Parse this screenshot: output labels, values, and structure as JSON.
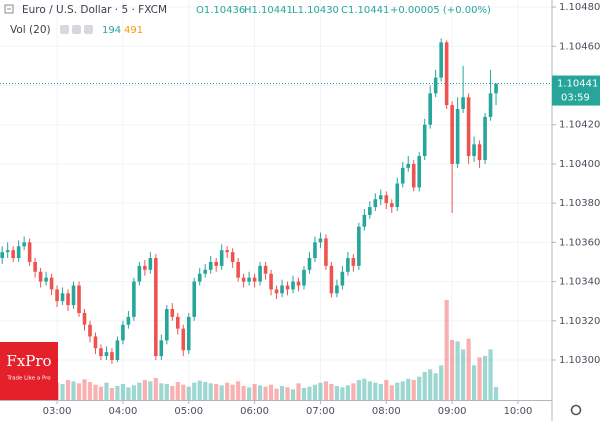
{
  "chart_data": {
    "type": "candlestick",
    "title": "Euro / U.S. Dollar · 5 · FXCM",
    "header_values": [
      "O1.10436",
      "H1.10441",
      "L1.10430",
      "C1.10441",
      "+0.00005 (+0.00%)"
    ],
    "volume_legend": {
      "name": "Vol (20)",
      "values": [
        "194",
        "491"
      ]
    },
    "last_price": {
      "value": 1.10441,
      "label": "1.10441",
      "countdown": "03:59"
    },
    "logo": {
      "name": "FxPro",
      "tagline": "Trade Like a Pro"
    },
    "up_color": "#26a69a",
    "down_color": "#ef5350",
    "grid": true,
    "x": [
      130,
      135,
      140,
      145,
      150,
      155,
      160,
      165,
      170,
      175,
      180,
      185,
      190,
      195,
      200,
      205,
      210,
      215,
      220,
      225,
      230,
      235,
      240,
      245,
      250,
      255,
      260,
      265,
      270,
      275,
      280,
      285,
      290,
      295,
      300,
      305,
      310,
      315,
      320,
      325,
      330,
      335,
      340,
      345,
      350,
      355,
      360,
      365,
      370,
      375,
      380,
      385,
      390,
      395,
      400,
      405,
      410,
      415,
      420,
      425,
      430,
      435,
      440,
      445,
      450,
      455,
      460,
      465,
      470,
      475,
      480,
      485,
      490,
      495,
      500,
      505,
      510,
      515,
      520,
      525,
      530,
      535,
      540,
      545,
      550,
      555,
      560,
      565,
      570,
      575,
      580
    ],
    "open": [
      1.10352,
      1.10355,
      1.10356,
      1.10352,
      1.10358,
      1.1036,
      1.1035,
      1.10345,
      1.1034,
      1.10342,
      1.10336,
      1.1033,
      1.10334,
      1.10328,
      1.10338,
      1.10324,
      1.10318,
      1.10312,
      1.10306,
      1.10302,
      1.10304,
      1.103,
      1.1031,
      1.10318,
      1.10322,
      1.1034,
      1.10348,
      1.10346,
      1.10352,
      1.10302,
      1.1031,
      1.10326,
      1.10322,
      1.10316,
      1.10305,
      1.10322,
      1.1034,
      1.10344,
      1.10346,
      1.1035,
      1.10348,
      1.10356,
      1.10355,
      1.1035,
      1.10342,
      1.1034,
      1.10342,
      1.1034,
      1.10348,
      1.10344,
      1.10336,
      1.10334,
      1.10338,
      1.10336,
      1.1034,
      1.10338,
      1.10346,
      1.10352,
      1.1036,
      1.10362,
      1.10348,
      1.10334,
      1.10338,
      1.10345,
      1.10352,
      1.10348,
      1.10368,
      1.10374,
      1.10378,
      1.10382,
      1.10384,
      1.1038,
      1.10378,
      1.1039,
      1.10398,
      1.104,
      1.10388,
      1.10404,
      1.1042,
      1.10436,
      1.10444,
      1.10462,
      1.1043,
      1.104,
      1.10428,
      1.10434,
      1.10404,
      1.1041,
      1.10402,
      1.10424,
      1.10436
    ],
    "high": [
      1.10358,
      1.1036,
      1.10358,
      1.10361,
      1.10363,
      1.10362,
      1.10352,
      1.10347,
      1.10345,
      1.10344,
      1.10338,
      1.10337,
      1.10336,
      1.1034,
      1.1034,
      1.10326,
      1.1032,
      1.10314,
      1.10308,
      1.10307,
      1.10306,
      1.10312,
      1.1032,
      1.10325,
      1.10342,
      1.1035,
      1.10351,
      1.10355,
      1.10354,
      1.10313,
      1.10328,
      1.10329,
      1.10324,
      1.10318,
      1.10324,
      1.10342,
      1.10347,
      1.10349,
      1.10353,
      1.10352,
      1.10359,
      1.10358,
      1.10357,
      1.10352,
      1.10344,
      1.10345,
      1.10344,
      1.1035,
      1.1035,
      1.10346,
      1.10338,
      1.10341,
      1.1034,
      1.10343,
      1.10342,
      1.10348,
      1.10355,
      1.10363,
      1.10365,
      1.10364,
      1.1035,
      1.10341,
      1.10348,
      1.10355,
      1.10354,
      1.1037,
      1.10377,
      1.10381,
      1.10385,
      1.10387,
      1.10386,
      1.10382,
      1.10393,
      1.10401,
      1.10404,
      1.10402,
      1.10406,
      1.10423,
      1.1044,
      1.10448,
      1.10464,
      1.10463,
      1.10432,
      1.10434,
      1.1045,
      1.10436,
      1.10414,
      1.10412,
      1.10426,
      1.10448,
      1.10441
    ],
    "low": [
      1.10349,
      1.10352,
      1.1035,
      1.1035,
      1.10356,
      1.10348,
      1.10342,
      1.10337,
      1.10338,
      1.10333,
      1.10327,
      1.10328,
      1.10325,
      1.10326,
      1.10322,
      1.10315,
      1.10309,
      1.10303,
      1.103,
      1.103,
      1.10298,
      1.10299,
      1.10308,
      1.10316,
      1.1032,
      1.10338,
      1.10343,
      1.10344,
      1.103,
      1.103,
      1.10308,
      1.1032,
      1.10313,
      1.10302,
      1.10303,
      1.1032,
      1.10338,
      1.10342,
      1.10344,
      1.10345,
      1.10346,
      1.10352,
      1.10347,
      1.1034,
      1.10337,
      1.10338,
      1.10337,
      1.10338,
      1.10341,
      1.10333,
      1.10331,
      1.10332,
      1.10333,
      1.10334,
      1.10335,
      1.10336,
      1.10344,
      1.1035,
      1.10357,
      1.10346,
      1.10332,
      1.10332,
      1.10336,
      1.10343,
      1.10345,
      1.10346,
      1.10366,
      1.10372,
      1.10376,
      1.10379,
      1.10377,
      1.10375,
      1.10376,
      1.10388,
      1.10396,
      1.10386,
      1.10386,
      1.10402,
      1.10418,
      1.10434,
      1.10442,
      1.10428,
      1.10375,
      1.10398,
      1.10426,
      1.104,
      1.10401,
      1.10398,
      1.104,
      1.10422,
      1.1043
    ],
    "close": [
      1.10355,
      1.10356,
      1.10352,
      1.10358,
      1.1036,
      1.1035,
      1.10345,
      1.1034,
      1.10342,
      1.10336,
      1.1033,
      1.10334,
      1.10328,
      1.10338,
      1.10324,
      1.10318,
      1.10312,
      1.10306,
      1.10302,
      1.10304,
      1.103,
      1.1031,
      1.10318,
      1.10322,
      1.1034,
      1.10348,
      1.10346,
      1.10352,
      1.10302,
      1.1031,
      1.10326,
      1.10322,
      1.10316,
      1.10305,
      1.10322,
      1.1034,
      1.10344,
      1.10346,
      1.1035,
      1.10348,
      1.10356,
      1.10355,
      1.1035,
      1.10342,
      1.1034,
      1.10342,
      1.1034,
      1.10348,
      1.10344,
      1.10336,
      1.10334,
      1.10338,
      1.10336,
      1.1034,
      1.10338,
      1.10346,
      1.10352,
      1.1036,
      1.10362,
      1.10348,
      1.10334,
      1.10338,
      1.10345,
      1.10352,
      1.10348,
      1.10368,
      1.10374,
      1.10378,
      1.10382,
      1.10384,
      1.1038,
      1.10378,
      1.1039,
      1.10398,
      1.104,
      1.10388,
      1.10404,
      1.1042,
      1.10436,
      1.10444,
      1.10462,
      1.1043,
      1.104,
      1.10428,
      1.10434,
      1.10404,
      1.1041,
      1.10402,
      1.10424,
      1.10436,
      1.10441
    ],
    "volume": [
      150,
      120,
      140,
      110,
      160,
      200,
      180,
      170,
      220,
      190,
      260,
      240,
      300,
      280,
      250,
      310,
      270,
      230,
      200,
      260,
      180,
      210,
      240,
      190,
      220,
      260,
      300,
      280,
      330,
      250,
      240,
      210,
      270,
      230,
      200,
      260,
      290,
      270,
      250,
      240,
      220,
      260,
      230,
      280,
      210,
      190,
      240,
      220,
      200,
      230,
      170,
      210,
      190,
      160,
      250,
      180,
      200,
      230,
      260,
      280,
      240,
      210,
      190,
      220,
      250,
      300,
      320,
      280,
      260,
      240,
      300,
      220,
      260,
      280,
      320,
      300,
      350,
      420,
      460,
      400,
      520,
      1500,
      900,
      880,
      760,
      920,
      520,
      640,
      660,
      760,
      194
    ],
    "vlim": [
      0,
      6000
    ],
    "xlim": [
      128,
      631
    ],
    "xticks": [
      {
        "value": 180,
        "label": "03:00"
      },
      {
        "value": 240,
        "label": "04:00"
      },
      {
        "value": 300,
        "label": "05:00"
      },
      {
        "value": 360,
        "label": "06:00"
      },
      {
        "value": 420,
        "label": "07:00"
      },
      {
        "value": 480,
        "label": "08:00"
      },
      {
        "value": 540,
        "label": "09:00"
      },
      {
        "value": 600,
        "label": "10:00"
      }
    ],
    "ylim": [
      1.102796,
      1.104836
    ],
    "yticks": [
      {
        "value": 1.103,
        "label": "1.10300"
      },
      {
        "value": 1.1032,
        "label": "1.10320"
      },
      {
        "value": 1.1034,
        "label": "1.10340"
      },
      {
        "value": 1.1036,
        "label": "1.10360"
      },
      {
        "value": 1.1038,
        "label": "1.10380"
      },
      {
        "value": 1.104,
        "label": "1.10400"
      },
      {
        "value": 1.1042,
        "label": "1.10420"
      },
      {
        "value": 1.1044,
        "label": "1.10440"
      },
      {
        "value": 1.1046,
        "label": "1.10460"
      },
      {
        "value": 1.1048,
        "label": "1.10480"
      }
    ]
  }
}
